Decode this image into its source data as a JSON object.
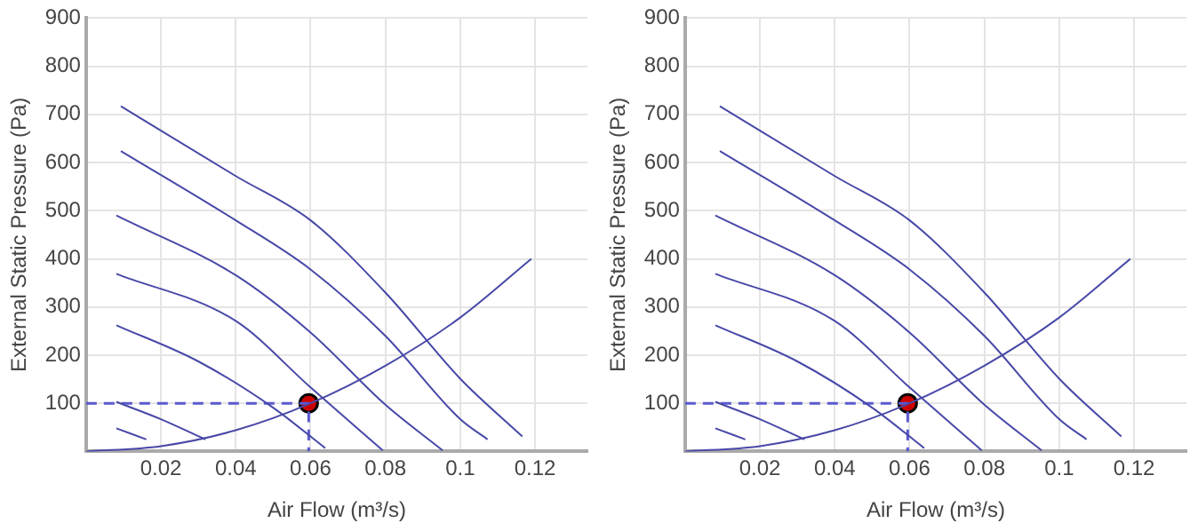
{
  "chart_data": [
    {
      "type": "line",
      "xlabel": "Air Flow (m³/s)",
      "ylabel": "External Static Pressure (Pa)",
      "xlim": [
        0,
        0.134
      ],
      "ylim": [
        0,
        900
      ],
      "xticks": [
        0.02,
        0.04,
        0.06,
        0.08,
        0.1,
        0.12
      ],
      "yticks": [
        100,
        200,
        300,
        400,
        500,
        600,
        700,
        800,
        900
      ],
      "grid": true,
      "legend": false,
      "marker": "none",
      "line_style": "solid",
      "series": [
        {
          "color": "#4848a8",
          "x": [
            0.0093,
            0.04,
            0.06,
            0.08,
            0.1,
            0.1166
          ],
          "values": [
            717,
            572,
            480,
            330,
            151,
            31
          ]
        },
        {
          "color": "#4848a8",
          "x": [
            0.0093,
            0.04,
            0.06,
            0.08,
            0.1,
            0.1073
          ],
          "values": [
            624,
            480,
            378,
            240,
            67,
            25
          ]
        },
        {
          "color": "#4848a8",
          "x": [
            0.0081,
            0.04,
            0.06,
            0.08,
            0.0953
          ],
          "values": [
            490,
            366,
            247,
            97,
            2
          ]
        },
        {
          "color": "#4848a8",
          "x": [
            0.0081,
            0.04,
            0.06,
            0.0793
          ],
          "values": [
            369,
            271,
            133,
            2
          ]
        },
        {
          "color": "#4848a8",
          "x": [
            0.0081,
            0.03,
            0.05,
            0.0639
          ],
          "values": [
            262,
            187,
            91,
            7
          ]
        },
        {
          "color": "#4848a8",
          "x": [
            0.0081,
            0.02,
            0.0319
          ],
          "values": [
            103,
            67,
            25
          ]
        },
        {
          "color": "#4848a8",
          "x": [
            0.0081,
            0.0161
          ],
          "values": [
            48,
            25
          ]
        },
        {
          "color": "#4848a8",
          "x": [
            0,
            0.02,
            0.04,
            0.06,
            0.08,
            0.1,
            0.119
          ],
          "values": [
            0,
            11,
            44,
            100,
            178,
            278,
            400
          ]
        },
        {
          "color": "#5a5ad0",
          "line_style": "dashed",
          "x": [
            0,
            0.0595,
            0.0595
          ],
          "values": [
            100,
            100,
            0
          ]
        },
        {
          "type": "scatter",
          "color": "#cc0000",
          "marker": "circle",
          "x": [
            0.0595
          ],
          "values": [
            100
          ]
        }
      ]
    },
    {
      "type": "line",
      "xlabel": "Air Flow (m³/s)",
      "ylabel": "External Static Pressure (Pa)",
      "xlim": [
        0,
        0.134
      ],
      "ylim": [
        0,
        900
      ],
      "xticks": [
        0.02,
        0.04,
        0.06,
        0.08,
        0.1,
        0.12
      ],
      "yticks": [
        100,
        200,
        300,
        400,
        500,
        600,
        700,
        800,
        900
      ],
      "grid": true,
      "legend": false,
      "marker": "none",
      "line_style": "solid",
      "series": [
        {
          "color": "#4848a8",
          "x": [
            0.0093,
            0.04,
            0.06,
            0.08,
            0.1,
            0.1166
          ],
          "values": [
            717,
            572,
            480,
            330,
            151,
            31
          ]
        },
        {
          "color": "#4848a8",
          "x": [
            0.0093,
            0.04,
            0.06,
            0.08,
            0.1,
            0.1073
          ],
          "values": [
            624,
            480,
            378,
            240,
            67,
            25
          ]
        },
        {
          "color": "#4848a8",
          "x": [
            0.0081,
            0.04,
            0.06,
            0.08,
            0.0953
          ],
          "values": [
            490,
            366,
            247,
            97,
            2
          ]
        },
        {
          "color": "#4848a8",
          "x": [
            0.0081,
            0.04,
            0.06,
            0.0793
          ],
          "values": [
            369,
            271,
            133,
            2
          ]
        },
        {
          "color": "#4848a8",
          "x": [
            0.0081,
            0.03,
            0.05,
            0.0639
          ],
          "values": [
            262,
            187,
            91,
            7
          ]
        },
        {
          "color": "#4848a8",
          "x": [
            0.0081,
            0.02,
            0.0319
          ],
          "values": [
            103,
            67,
            25
          ]
        },
        {
          "color": "#4848a8",
          "x": [
            0.0081,
            0.0161
          ],
          "values": [
            48,
            25
          ]
        },
        {
          "color": "#4848a8",
          "x": [
            0,
            0.02,
            0.04,
            0.06,
            0.08,
            0.1,
            0.119
          ],
          "values": [
            0,
            11,
            44,
            100,
            178,
            278,
            400
          ]
        },
        {
          "color": "#5a5ad0",
          "line_style": "dashed",
          "x": [
            0,
            0.0595,
            0.0595
          ],
          "values": [
            100,
            100,
            0
          ]
        },
        {
          "type": "scatter",
          "color": "#cc0000",
          "marker": "circle",
          "x": [
            0.0595
          ],
          "values": [
            100
          ]
        }
      ]
    }
  ]
}
